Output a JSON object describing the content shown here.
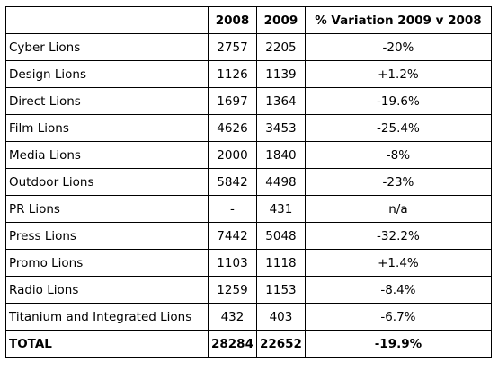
{
  "table": {
    "headers": [
      "",
      "2008",
      "2009",
      "% Variation 2009 v 2008"
    ],
    "rows": [
      {
        "name": "Cyber Lions",
        "y2008": "2757",
        "y2009": "2205",
        "variation": "-20%"
      },
      {
        "name": "Design Lions",
        "y2008": "1126",
        "y2009": "1139",
        "variation": "+1.2%"
      },
      {
        "name": "Direct Lions",
        "y2008": "1697",
        "y2009": "1364",
        "variation": "-19.6%"
      },
      {
        "name": "Film Lions",
        "y2008": "4626",
        "y2009": "3453",
        "variation": "-25.4%"
      },
      {
        "name": "Media Lions",
        "y2008": "2000",
        "y2009": "1840",
        "variation": "-8%"
      },
      {
        "name": "Outdoor Lions",
        "y2008": "5842",
        "y2009": "4498",
        "variation": "-23%"
      },
      {
        "name": "PR Lions",
        "y2008": "-",
        "y2009": "431",
        "variation": "n/a"
      },
      {
        "name": "Press Lions",
        "y2008": "7442",
        "y2009": "5048",
        "variation": "-32.2%"
      },
      {
        "name": "Promo Lions",
        "y2008": "1103",
        "y2009": "1118",
        "variation": "+1.4%"
      },
      {
        "name": "Radio Lions",
        "y2008": "1259",
        "y2009": "1153",
        "variation": "-8.4%"
      },
      {
        "name": "Titanium and Integrated Lions",
        "y2008": "432",
        "y2009": "403",
        "variation": "-6.7%"
      }
    ],
    "total": {
      "name": "TOTAL",
      "y2008": "28284",
      "y2009": "22652",
      "variation": "-19.9%"
    }
  }
}
